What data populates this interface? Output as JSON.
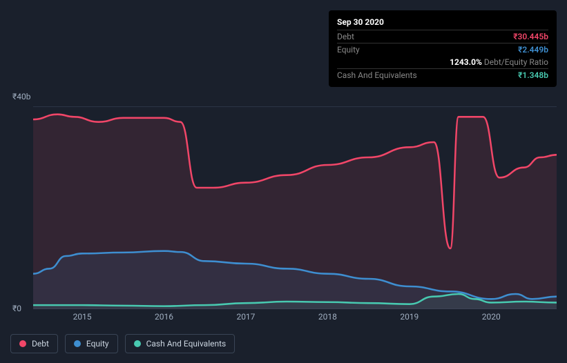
{
  "tooltip": {
    "date": "Sep 30 2020",
    "rows": [
      {
        "label": "Debt",
        "value": "₹30.445b",
        "color": "#f14668"
      },
      {
        "label": "Equity",
        "value": "₹2.449b",
        "color": "#3e8ed0"
      }
    ],
    "ratio": {
      "value": "1243.0%",
      "label": "Debt/Equity Ratio"
    },
    "extra": {
      "label": "Cash And Equivalents",
      "value": "₹1.348b",
      "color": "#48c9b0"
    }
  },
  "chart": {
    "type": "area",
    "background": "#1a202c",
    "gridline_color": "#2d3748",
    "y_axis": {
      "ticks": [
        {
          "value": 40,
          "label": "₹40b"
        },
        {
          "value": 0,
          "label": "₹0"
        }
      ],
      "min": 0,
      "max": 42
    },
    "x_axis": {
      "ticks": [
        "2015",
        "2016",
        "2017",
        "2018",
        "2019",
        "2020"
      ],
      "min": 2014.4,
      "max": 2020.8
    },
    "series": [
      {
        "name": "Debt",
        "color": "#f14668",
        "fill_opacity": 0.12,
        "line_width": 2.5,
        "data": [
          [
            2014.4,
            37.5
          ],
          [
            2014.7,
            38.5
          ],
          [
            2014.9,
            38.0
          ],
          [
            2015.2,
            37.0
          ],
          [
            2015.5,
            37.8
          ],
          [
            2016.0,
            37.8
          ],
          [
            2016.2,
            37.0
          ],
          [
            2016.4,
            24.0
          ],
          [
            2016.6,
            24.0
          ],
          [
            2017.0,
            25.0
          ],
          [
            2017.5,
            26.5
          ],
          [
            2018.0,
            28.5
          ],
          [
            2018.5,
            30.0
          ],
          [
            2019.0,
            32.0
          ],
          [
            2019.3,
            33.0
          ],
          [
            2019.5,
            12.0
          ],
          [
            2019.6,
            38.0
          ],
          [
            2019.9,
            38.0
          ],
          [
            2020.1,
            26.0
          ],
          [
            2020.4,
            28.0
          ],
          [
            2020.6,
            30.0
          ],
          [
            2020.8,
            30.5
          ]
        ]
      },
      {
        "name": "Equity",
        "color": "#3e8ed0",
        "fill_opacity": 0.1,
        "line_width": 2.5,
        "data": [
          [
            2014.4,
            7.0
          ],
          [
            2014.6,
            8.0
          ],
          [
            2014.8,
            10.5
          ],
          [
            2015.0,
            11.0
          ],
          [
            2015.5,
            11.2
          ],
          [
            2016.0,
            11.5
          ],
          [
            2016.2,
            11.3
          ],
          [
            2016.5,
            9.5
          ],
          [
            2017.0,
            9.0
          ],
          [
            2017.5,
            8.0
          ],
          [
            2018.0,
            7.0
          ],
          [
            2018.5,
            6.0
          ],
          [
            2019.0,
            4.5
          ],
          [
            2019.5,
            3.5
          ],
          [
            2020.0,
            2.0
          ],
          [
            2020.3,
            3.0
          ],
          [
            2020.5,
            2.0
          ],
          [
            2020.8,
            2.5
          ]
        ]
      },
      {
        "name": "Cash And Equivalents",
        "color": "#48c9b0",
        "fill_opacity": 0.08,
        "line_width": 2.5,
        "data": [
          [
            2014.4,
            0.8
          ],
          [
            2015.0,
            0.8
          ],
          [
            2015.5,
            0.7
          ],
          [
            2016.0,
            0.6
          ],
          [
            2016.5,
            0.8
          ],
          [
            2017.0,
            1.2
          ],
          [
            2017.5,
            1.5
          ],
          [
            2018.0,
            1.4
          ],
          [
            2018.5,
            1.2
          ],
          [
            2019.0,
            1.0
          ],
          [
            2019.3,
            2.5
          ],
          [
            2019.6,
            3.0
          ],
          [
            2019.8,
            2.0
          ],
          [
            2020.0,
            1.3
          ],
          [
            2020.4,
            1.5
          ],
          [
            2020.8,
            1.3
          ]
        ]
      }
    ]
  },
  "legend": [
    {
      "label": "Debt",
      "color": "#f14668"
    },
    {
      "label": "Equity",
      "color": "#3e8ed0"
    },
    {
      "label": "Cash And Equivalents",
      "color": "#48c9b0"
    }
  ]
}
